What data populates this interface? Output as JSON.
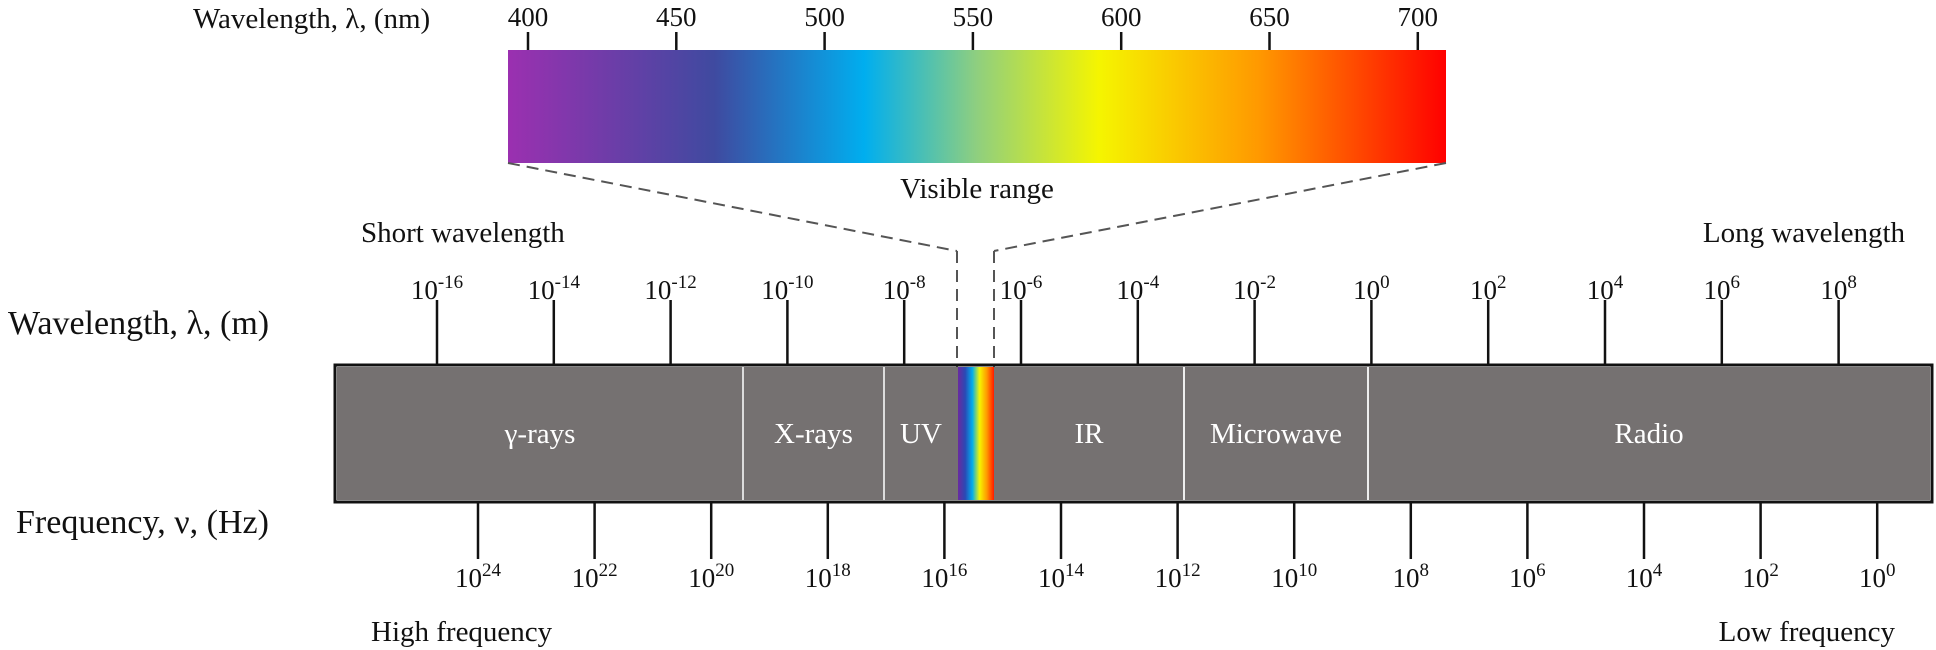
{
  "visible_axis": {
    "label": "Wavelength,  λ, (nm)",
    "ticks": [
      "400",
      "450",
      "500",
      "550",
      "600",
      "650",
      "700"
    ],
    "range_label": "Visible range",
    "gradient_colors": [
      "#9b30b0",
      "#3f4aa0",
      "#00aeef",
      "#f5f500",
      "#ff9900",
      "#ff0000"
    ]
  },
  "wavelength_axis": {
    "label": "Wavelength,  λ, (m)",
    "short_label": "Short wavelength",
    "long_label": "Long wavelength",
    "ticks": [
      {
        "base": "10",
        "exp": "-16"
      },
      {
        "base": "10",
        "exp": "-14"
      },
      {
        "base": "10",
        "exp": "-12"
      },
      {
        "base": "10",
        "exp": "-10"
      },
      {
        "base": "10",
        "exp": "-8"
      },
      {
        "base": "10",
        "exp": "-6"
      },
      {
        "base": "10",
        "exp": "-4"
      },
      {
        "base": "10",
        "exp": "-2"
      },
      {
        "base": "10",
        "exp": "0"
      },
      {
        "base": "10",
        "exp": "2"
      },
      {
        "base": "10",
        "exp": "4"
      },
      {
        "base": "10",
        "exp": "6"
      },
      {
        "base": "10",
        "exp": "8"
      }
    ]
  },
  "frequency_axis": {
    "label": "Frequency, ν, (Hz)",
    "high_label": "High frequency",
    "low_label": "Low frequency",
    "ticks": [
      {
        "base": "10",
        "exp": "24"
      },
      {
        "base": "10",
        "exp": "22"
      },
      {
        "base": "10",
        "exp": "20"
      },
      {
        "base": "10",
        "exp": "18"
      },
      {
        "base": "10",
        "exp": "16"
      },
      {
        "base": "10",
        "exp": "14"
      },
      {
        "base": "10",
        "exp": "12"
      },
      {
        "base": "10",
        "exp": "10"
      },
      {
        "base": "10",
        "exp": "8"
      },
      {
        "base": "10",
        "exp": "6"
      },
      {
        "base": "10",
        "exp": "4"
      },
      {
        "base": "10",
        "exp": "2"
      },
      {
        "base": "10",
        "exp": "0"
      }
    ]
  },
  "bands": [
    {
      "label": "γ-rays"
    },
    {
      "label": "X-rays"
    },
    {
      "label": "UV"
    },
    {
      "label": ""
    },
    {
      "label": "IR"
    },
    {
      "label": "Microwave"
    },
    {
      "label": "Radio"
    }
  ],
  "colors": {
    "band_fill": "#757171",
    "band_text": "#ffffff",
    "line": "#111111",
    "dashed": "#555555"
  }
}
